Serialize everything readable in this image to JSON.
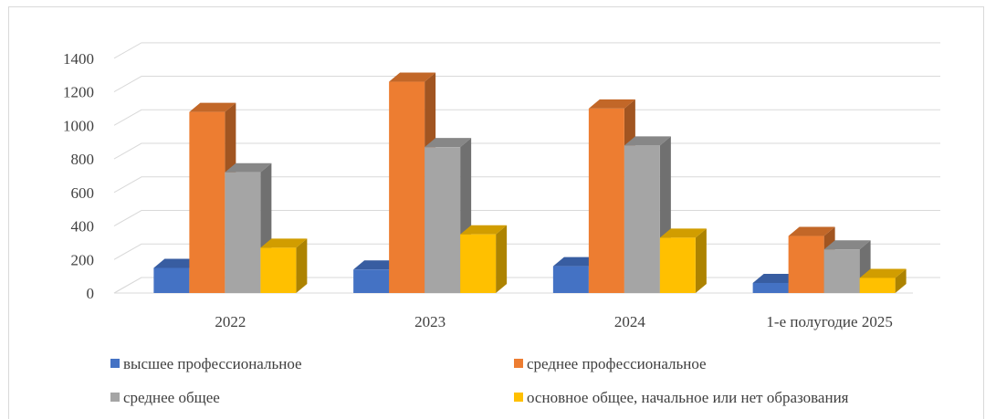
{
  "chart_data": {
    "type": "bar",
    "style": "3d-clustered-column",
    "categories": [
      "2022",
      "2023",
      "2024",
      "1-е полугодие 2025"
    ],
    "series": [
      {
        "name": "высшее профессиональное",
        "color": "#4472c4",
        "values": [
          150,
          140,
          160,
          60
        ]
      },
      {
        "name": "среднее профессиональное",
        "color": "#ed7d31",
        "values": [
          1080,
          1260,
          1100,
          340
        ]
      },
      {
        "name": "среднее общее",
        "color": "#a5a5a5",
        "values": [
          720,
          870,
          880,
          260
        ]
      },
      {
        "name": "основное общее, начальное или нет образования",
        "color": "#ffc000",
        "values": [
          270,
          350,
          330,
          90
        ]
      }
    ],
    "yticks": [
      "0",
      "200",
      "400",
      "600",
      "800",
      "1000",
      "1200",
      "1400"
    ],
    "ylim": [
      0,
      1400
    ],
    "grid": true,
    "legend_position": "bottom"
  }
}
